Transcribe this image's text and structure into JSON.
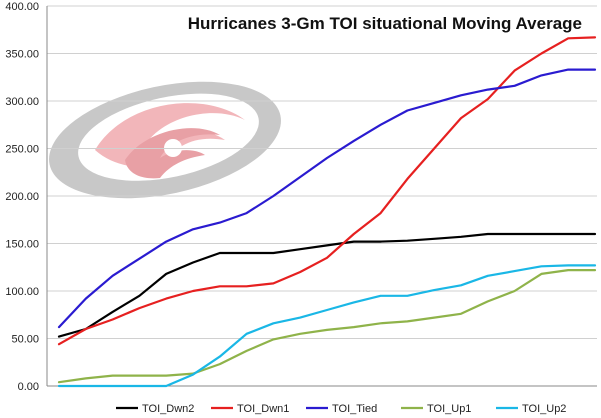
{
  "chart_data": {
    "type": "line",
    "title": "Hurricanes 3-Gm TOI situational Moving Average",
    "xlabel": "",
    "ylabel": "",
    "ylim": [
      0,
      400
    ],
    "yticks": [
      "0.00",
      "50.00",
      "100.00",
      "150.00",
      "200.00",
      "250.00",
      "300.00",
      "350.00",
      "400.00"
    ],
    "grid": true,
    "legend_position": "bottom",
    "x": [
      1,
      2,
      3,
      4,
      5,
      6,
      7,
      8,
      9,
      10,
      11,
      12,
      13,
      14,
      15,
      16,
      17,
      18,
      19,
      20,
      21
    ],
    "series": [
      {
        "name": "TOI_Dwn2",
        "color": "#000000",
        "values": [
          52,
          60,
          78,
          95,
          118,
          130,
          140,
          140,
          140,
          144,
          148,
          152,
          152,
          153,
          155,
          157,
          160,
          160,
          160,
          160,
          160
        ]
      },
      {
        "name": "TOI_Dwn1",
        "color": "#e62020",
        "values": [
          44,
          60,
          70,
          82,
          92,
          100,
          105,
          105,
          108,
          120,
          135,
          160,
          182,
          218,
          250,
          282,
          302,
          332,
          350,
          366,
          367
        ]
      },
      {
        "name": "TOI_Tied",
        "color": "#2a1bd0",
        "values": [
          62,
          92,
          116,
          134,
          152,
          165,
          172,
          182,
          200,
          220,
          240,
          258,
          275,
          290,
          298,
          306,
          312,
          316,
          327,
          333,
          333
        ]
      },
      {
        "name": "TOI_Up1",
        "color": "#8fb34a",
        "values": [
          4,
          8,
          11,
          11,
          11,
          13,
          23,
          37,
          49,
          55,
          59,
          62,
          66,
          68,
          72,
          76,
          89,
          100,
          118,
          122,
          122
        ]
      },
      {
        "name": "TOI_Up2",
        "color": "#1ab7e6",
        "values": [
          0,
          0,
          0,
          0,
          0,
          12,
          31,
          55,
          66,
          72,
          80,
          88,
          95,
          95,
          101,
          106,
          116,
          121,
          126,
          127,
          127
        ]
      }
    ]
  }
}
